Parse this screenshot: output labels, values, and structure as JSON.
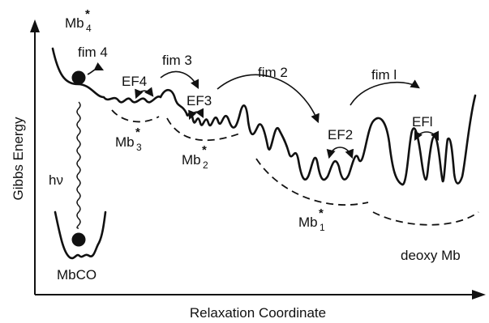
{
  "labels": {
    "y_axis": "Gibbs Energy",
    "x_axis": "Relaxation Coordinate",
    "mb4": "Mb",
    "mb4_sub": "4",
    "mb3": "Mb",
    "mb3_sub": "3",
    "mb2": "Mb",
    "mb2_sub": "2",
    "mb1": "Mb",
    "mb1_sub": "1",
    "star": "*",
    "fim4": "fim 4",
    "fim3": "fim 3",
    "fim2": "fim 2",
    "fim1": "fim l",
    "ef4": "EF4",
    "ef3": "EF3",
    "ef2": "EF2",
    "ef1": "EFl",
    "hv": "hν",
    "mbco": "MbCO",
    "deoxy": "deoxy Mb"
  },
  "colors": {
    "ink": "#111111",
    "background": "#ffffff"
  }
}
